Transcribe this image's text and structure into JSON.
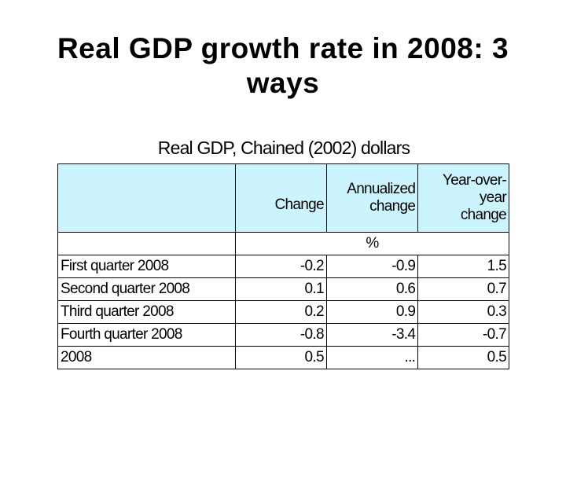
{
  "title": {
    "line1": "Real GDP growth rate in 2008: 3",
    "line2": "ways"
  },
  "table": {
    "caption": "Real GDP, Chained (2002) dollars",
    "headers": {
      "label": "",
      "change": "Change",
      "annualized_line1": "Annualized",
      "annualized_line2": "change",
      "yoy_line1": "Year-over-",
      "yoy_line2": "year",
      "yoy_line3": "change"
    },
    "unit": "%",
    "rows": [
      {
        "label": "First quarter  2008",
        "change": "-0.2",
        "annualized": "-0.9",
        "yoy": "1.5"
      },
      {
        "label": "Second quarter  2008",
        "change": "0.1",
        "annualized": "0.6",
        "yoy": "0.7"
      },
      {
        "label": "Third quarter  2008",
        "change": "0.2",
        "annualized": "0.9",
        "yoy": "0.3"
      },
      {
        "label": "Fourth quarter  2008",
        "change": "-0.8",
        "annualized": "-3.4",
        "yoy": "-0.7"
      },
      {
        "label": "2008",
        "change": "0.5",
        "annualized": "...",
        "yoy": "0.5"
      }
    ]
  }
}
